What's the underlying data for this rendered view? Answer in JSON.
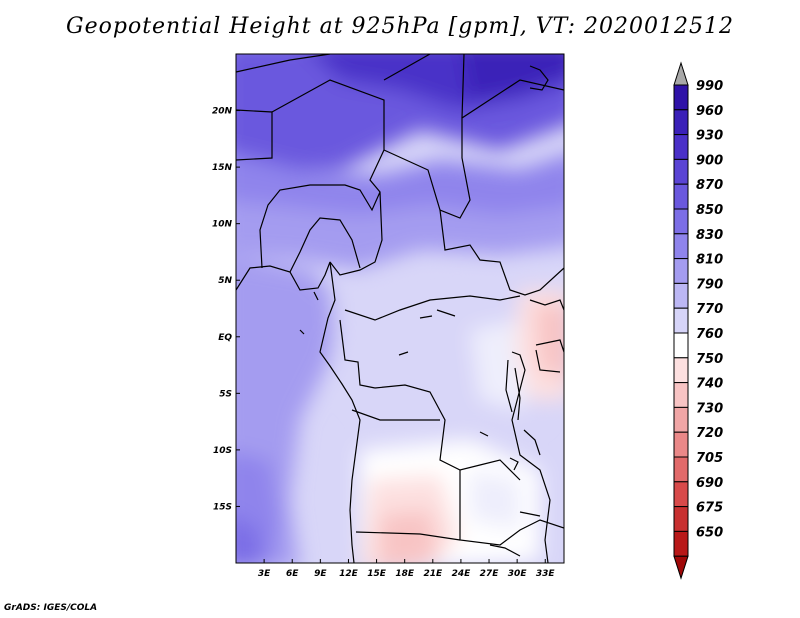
{
  "title": "Geopotential Height at 925hPa [gpm], VT: 2020012512",
  "footer": "GrADS: IGES/COLA",
  "map": {
    "lon_range": [
      0,
      35
    ],
    "lat_range": [
      -20,
      25
    ],
    "x_ticks": [
      "3E",
      "6E",
      "9E",
      "12E",
      "15E",
      "18E",
      "21E",
      "24E",
      "27E",
      "30E",
      "33E"
    ],
    "y_ticks": [
      "20N",
      "15N",
      "10N",
      "5N",
      "EQ",
      "5S",
      "10S",
      "15S"
    ]
  },
  "colorbar": {
    "levels": [
      "990",
      "960",
      "930",
      "900",
      "870",
      "850",
      "830",
      "810",
      "790",
      "770",
      "760",
      "750",
      "740",
      "730",
      "720",
      "705",
      "690",
      "675",
      "650"
    ],
    "colors": [
      "#2f12a8",
      "#3a20b8",
      "#4a30c8",
      "#5a44d4",
      "#6a58de",
      "#7c6ee6",
      "#8f84ec",
      "#a49cf0",
      "#bcb7f4",
      "#d6d4f8",
      "#ffffff",
      "#fde0e0",
      "#f8c4c4",
      "#f1a6a6",
      "#ea8888",
      "#e26a6a",
      "#d84a4a",
      "#c83030",
      "#b81818",
      "#a00808"
    ],
    "top_arrow_color": "#a8a8a8"
  }
}
